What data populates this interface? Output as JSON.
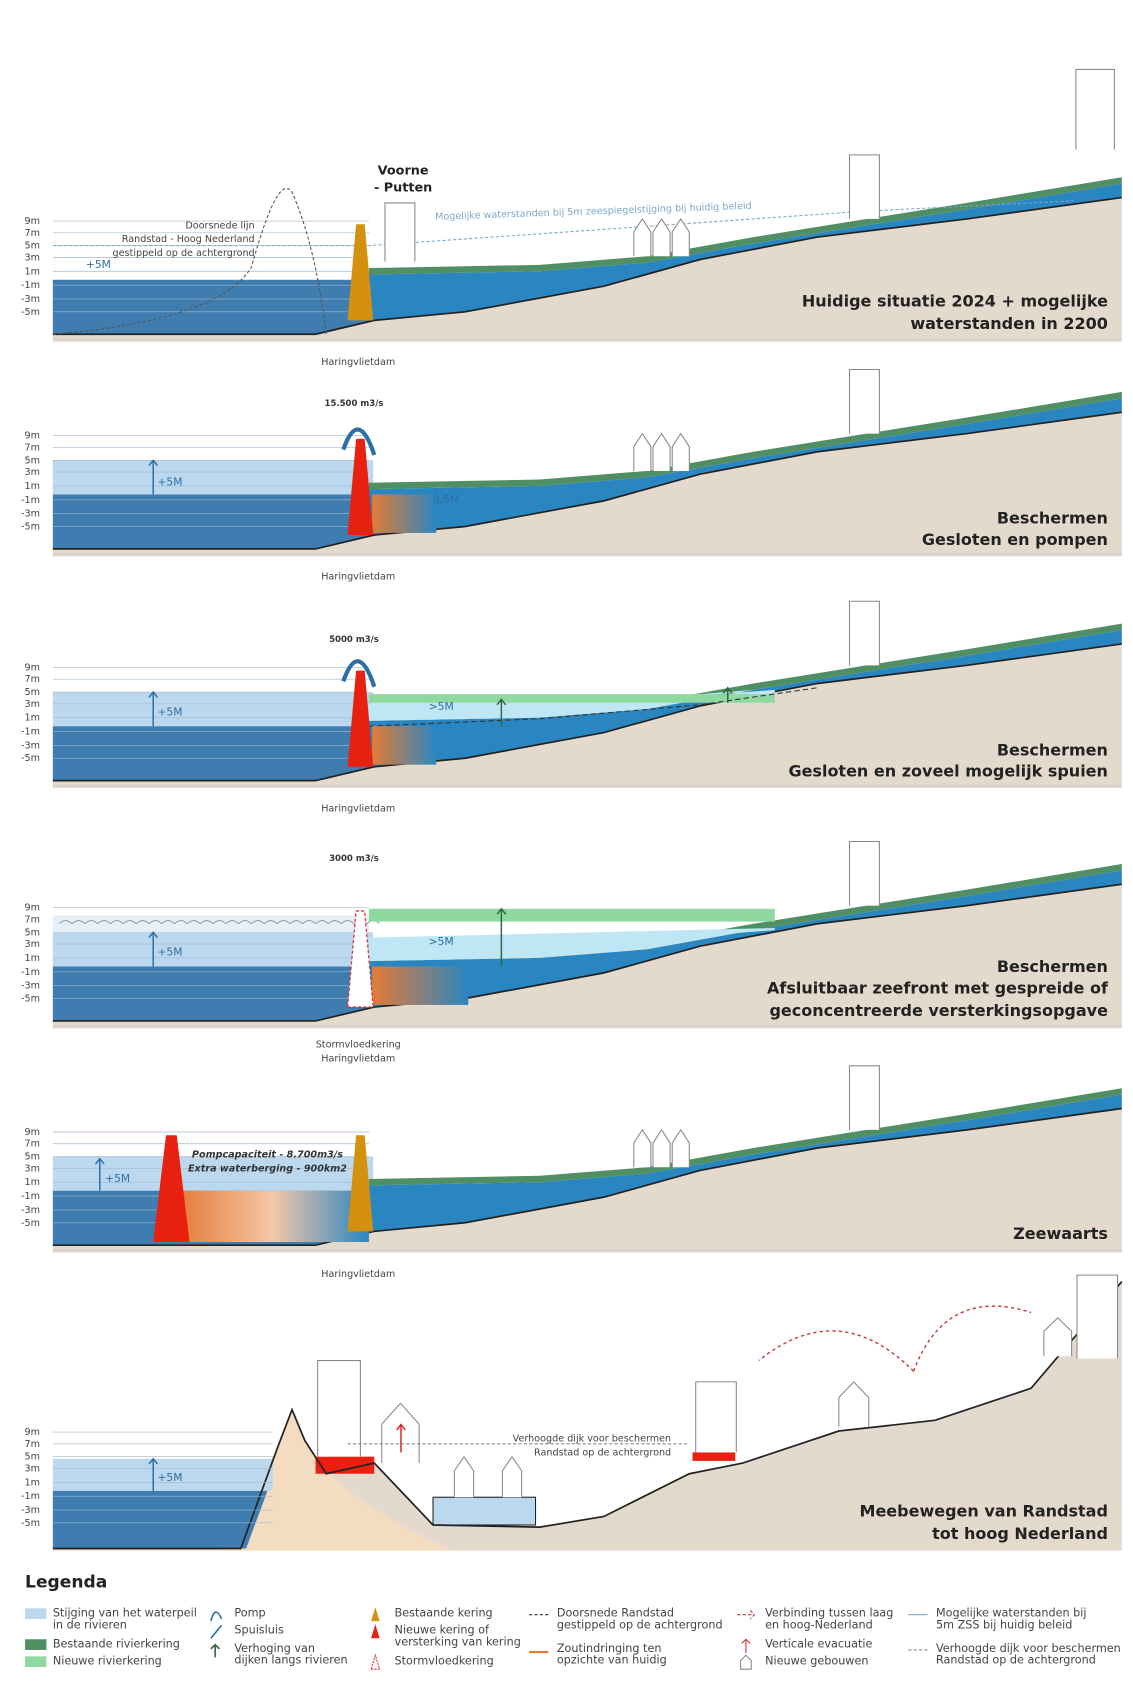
{
  "depth_labels": [
    "9m",
    "7m",
    "5m",
    "3m",
    "1m",
    "-1m",
    "-3m",
    "-5m"
  ],
  "panels": [
    {
      "title": [
        "Huidige situatie 2024 + mogelijke",
        "waterstanden in 2200"
      ],
      "caption": [
        "Haringvlietdam"
      ],
      "notes": [
        "Voorne",
        "- Putten",
        "Doorsnede lijn",
        "Randstad - Hoog Nederland",
        "gestippeld op de achtergrond",
        "+5M",
        "Mogelijke waterstanden bij 5m zeespiegelstijging bij huidig beleid"
      ]
    },
    {
      "title": [
        "Beschermen",
        "Gesloten en pompen"
      ],
      "caption": [
        "Haringvlietdam"
      ],
      "notes": [
        "15.500 m3/s",
        "+5M",
        "0,5M"
      ]
    },
    {
      "title": [
        "Beschermen",
        "Gesloten en zoveel mogelijk spuien"
      ],
      "caption": [
        "Haringvlietdam"
      ],
      "notes": [
        "5000 m3/s",
        "+5M",
        ">5M"
      ]
    },
    {
      "title": [
        "Beschermen",
        "Afsluitbaar zeefront met gespreide of",
        "geconcentreerde versterkingsopgave"
      ],
      "caption": [
        "Stormvloedkering",
        "Haringvlietdam"
      ],
      "notes": [
        "3000 m3/s",
        "+5M",
        ">5M"
      ]
    },
    {
      "title": [
        "Zeewaarts"
      ],
      "caption": [
        "Haringvlietdam"
      ],
      "notes": [
        "+5M",
        "Pompcapaciteit - 8.700m3/s",
        "Extra waterberging - 900km2"
      ]
    },
    {
      "title": [
        "Meebewegen van Randstad",
        "tot hoog Nederland"
      ],
      "notes": [
        "+5M",
        "Verhoogde dijk voor beschermen",
        "Randstad op de achtergrond"
      ]
    }
  ],
  "legend": {
    "title": "Legenda",
    "items": [
      [
        "Stijging van het waterpeil",
        "in de rivieren"
      ],
      [
        "Bestaande rivierkering"
      ],
      [
        "Nieuwe rivierkering"
      ],
      [
        "Pomp"
      ],
      [
        "Spuisluis"
      ],
      [
        "Verhoging van",
        "dijken langs rivieren"
      ],
      [
        "Bestaande kering"
      ],
      [
        "Nieuwe kering of",
        "versterking van kering"
      ],
      [
        "Stormvloedkering"
      ],
      [
        "Doorsnede Randstad",
        "gestippeld op de achtergrond"
      ],
      [
        "Zoutindringing ten",
        "opzichte van huidig"
      ],
      [
        "Verbinding tussen laag",
        "en hoog-Nederland"
      ],
      [
        "Verticale evacuatie"
      ],
      [
        "Nieuwe gebouwen"
      ],
      [
        "Mogelijke waterstanden bij",
        "5m ZSS bij huidig beleid"
      ],
      [
        "Verhoogde dijk voor beschermen",
        "Randstad op de achtergrond"
      ]
    ]
  }
}
